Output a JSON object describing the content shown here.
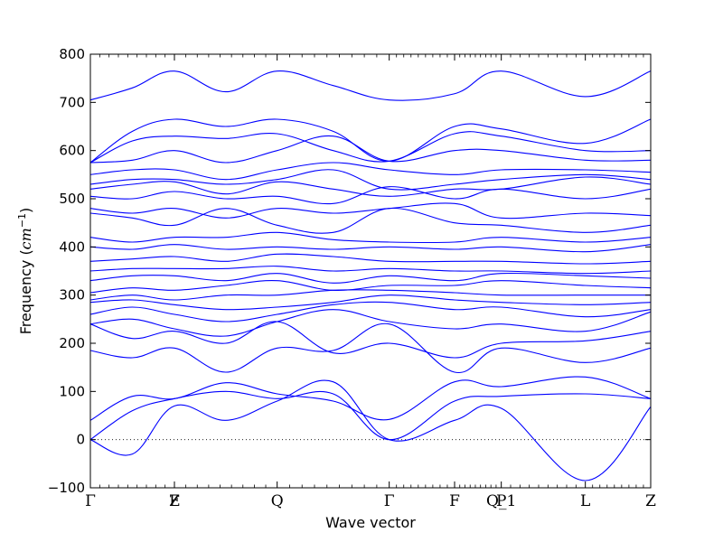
{
  "chart_data": {
    "type": "line",
    "xlabel": "Wave vector",
    "ylabel": "Frequency (cm⁻¹)",
    "ylabel_parts": {
      "main": "Frequency (",
      "unit_base": "cm",
      "unit_exp": "−1",
      "close": ")"
    },
    "ylim": [
      -100,
      800
    ],
    "yticks": [
      -100,
      0,
      100,
      200,
      300,
      400,
      500,
      600,
      700,
      800
    ],
    "zero_line": true,
    "grid": false,
    "line_color": "#0000ff",
    "xlim": [
      0,
      6.0
    ],
    "high_symmetry_points": [
      {
        "label": "Γ",
        "x": 0.0
      },
      {
        "label": "Z",
        "x": 0.9
      },
      {
        "label": "F",
        "x": 0.9
      },
      {
        "label": "Q",
        "x": 2.0
      },
      {
        "label": "Γ",
        "x": 3.2
      },
      {
        "label": "F",
        "x": 3.9
      },
      {
        "label": "Q_1",
        "x": 4.4
      },
      {
        "label": "P",
        "x": 4.4
      },
      {
        "label": "L",
        "x": 5.3
      },
      {
        "label": "Z",
        "x": 6.0
      }
    ],
    "minor_ticks_per_segment": 9,
    "series": [
      {
        "x": [
          0,
          0.45,
          0.9,
          1.45,
          2.0,
          2.6,
          3.2,
          3.9,
          4.4,
          5.3,
          6.0
        ],
        "y": [
          0,
          -30,
          70,
          40,
          80,
          120,
          0,
          40,
          65,
          -85,
          68
        ]
      },
      {
        "x": [
          0,
          0.45,
          0.9,
          1.45,
          2.0,
          2.6,
          3.2,
          3.9,
          4.4,
          5.3,
          6.0
        ],
        "y": [
          0,
          60,
          85,
          100,
          85,
          95,
          0,
          80,
          90,
          95,
          85
        ]
      },
      {
        "x": [
          0,
          0.45,
          0.9,
          1.45,
          2.0,
          2.6,
          3.2,
          3.9,
          4.4,
          5.3,
          6.0
        ],
        "y": [
          40,
          90,
          85,
          118,
          95,
          80,
          42,
          120,
          110,
          130,
          85
        ]
      },
      {
        "x": [
          0,
          0.45,
          0.9,
          1.45,
          2.0,
          2.6,
          3.2,
          3.9,
          4.4,
          5.3,
          6.0
        ],
        "y": [
          185,
          170,
          190,
          140,
          190,
          185,
          240,
          140,
          190,
          160,
          190
        ]
      },
      {
        "x": [
          0,
          0.45,
          0.9,
          1.45,
          2.0,
          2.6,
          3.2,
          3.9,
          4.4,
          5.3,
          6.0
        ],
        "y": [
          240,
          210,
          225,
          200,
          245,
          180,
          200,
          170,
          200,
          205,
          225
        ]
      },
      {
        "x": [
          0,
          0.45,
          0.9,
          1.45,
          2.0,
          2.6,
          3.2,
          3.9,
          4.4,
          5.3,
          6.0
        ],
        "y": [
          240,
          250,
          230,
          215,
          245,
          270,
          245,
          230,
          240,
          225,
          265
        ]
      },
      {
        "x": [
          0,
          0.45,
          0.9,
          1.45,
          2.0,
          2.6,
          3.2,
          3.9,
          4.4,
          5.3,
          6.0
        ],
        "y": [
          260,
          275,
          260,
          245,
          260,
          280,
          285,
          270,
          275,
          255,
          270
        ]
      },
      {
        "x": [
          0,
          0.45,
          0.9,
          1.45,
          2.0,
          2.6,
          3.2,
          3.9,
          4.4,
          5.3,
          6.0
        ],
        "y": [
          285,
          290,
          280,
          270,
          275,
          285,
          300,
          290,
          285,
          280,
          285
        ]
      },
      {
        "x": [
          0,
          0.45,
          0.9,
          1.45,
          2.0,
          2.6,
          3.2,
          3.9,
          4.4,
          5.3,
          6.0
        ],
        "y": [
          290,
          300,
          290,
          300,
          300,
          310,
          310,
          305,
          300,
          300,
          300
        ]
      },
      {
        "x": [
          0,
          0.45,
          0.9,
          1.45,
          2.0,
          2.6,
          3.2,
          3.9,
          4.4,
          5.3,
          6.0
        ],
        "y": [
          305,
          315,
          310,
          320,
          330,
          310,
          320,
          320,
          330,
          320,
          315
        ]
      },
      {
        "x": [
          0,
          0.45,
          0.9,
          1.45,
          2.0,
          2.6,
          3.2,
          3.9,
          4.4,
          5.3,
          6.0
        ],
        "y": [
          330,
          340,
          340,
          330,
          345,
          325,
          340,
          330,
          345,
          340,
          335
        ]
      },
      {
        "x": [
          0,
          0.45,
          0.9,
          1.45,
          2.0,
          2.6,
          3.2,
          3.9,
          4.4,
          5.3,
          6.0
        ],
        "y": [
          350,
          355,
          355,
          355,
          360,
          350,
          355,
          350,
          350,
          345,
          350
        ]
      },
      {
        "x": [
          0,
          0.45,
          0.9,
          1.45,
          2.0,
          2.6,
          3.2,
          3.9,
          4.4,
          5.3,
          6.0
        ],
        "y": [
          370,
          375,
          380,
          370,
          385,
          380,
          370,
          370,
          370,
          365,
          370
        ]
      },
      {
        "x": [
          0,
          0.45,
          0.9,
          1.45,
          2.0,
          2.6,
          3.2,
          3.9,
          4.4,
          5.3,
          6.0
        ],
        "y": [
          400,
          395,
          405,
          395,
          400,
          395,
          400,
          395,
          400,
          390,
          405
        ]
      },
      {
        "x": [
          0,
          0.45,
          0.9,
          1.45,
          2.0,
          2.6,
          3.2,
          3.9,
          4.4,
          5.3,
          6.0
        ],
        "y": [
          420,
          410,
          420,
          420,
          430,
          415,
          410,
          410,
          420,
          410,
          420
        ]
      },
      {
        "x": [
          0,
          0.45,
          0.9,
          1.45,
          2.0,
          2.6,
          3.2,
          3.9,
          4.4,
          5.3,
          6.0
        ],
        "y": [
          470,
          460,
          445,
          480,
          445,
          430,
          480,
          450,
          445,
          430,
          445
        ]
      },
      {
        "x": [
          0,
          0.45,
          0.9,
          1.45,
          2.0,
          2.6,
          3.2,
          3.9,
          4.4,
          5.3,
          6.0
        ],
        "y": [
          480,
          470,
          480,
          460,
          480,
          470,
          480,
          490,
          460,
          470,
          465
        ]
      },
      {
        "x": [
          0,
          0.45,
          0.9,
          1.45,
          2.0,
          2.6,
          3.2,
          3.9,
          4.4,
          5.3,
          6.0
        ],
        "y": [
          505,
          500,
          515,
          500,
          505,
          490,
          525,
          500,
          520,
          500,
          520
        ]
      },
      {
        "x": [
          0,
          0.45,
          0.9,
          1.45,
          2.0,
          2.6,
          3.2,
          3.9,
          4.4,
          5.3,
          6.0
        ],
        "y": [
          520,
          530,
          535,
          510,
          535,
          520,
          505,
          520,
          520,
          545,
          530
        ]
      },
      {
        "x": [
          0,
          0.45,
          0.9,
          1.45,
          2.0,
          2.6,
          3.2,
          3.9,
          4.4,
          5.3,
          6.0
        ],
        "y": [
          530,
          540,
          540,
          530,
          540,
          560,
          520,
          530,
          540,
          550,
          540
        ]
      },
      {
        "x": [
          0,
          0.45,
          0.9,
          1.45,
          2.0,
          2.6,
          3.2,
          3.9,
          4.4,
          5.3,
          6.0
        ],
        "y": [
          550,
          560,
          560,
          540,
          560,
          575,
          560,
          550,
          560,
          560,
          555
        ]
      },
      {
        "x": [
          0,
          0.45,
          0.9,
          1.45,
          2.0,
          2.6,
          3.2,
          3.9,
          4.4,
          5.3,
          6.0
        ],
        "y": [
          575,
          580,
          600,
          575,
          600,
          630,
          578,
          600,
          600,
          580,
          580
        ]
      },
      {
        "x": [
          0,
          0.45,
          0.9,
          1.45,
          2.0,
          2.6,
          3.2,
          3.9,
          4.4,
          5.3,
          6.0
        ],
        "y": [
          575,
          620,
          630,
          625,
          635,
          600,
          578,
          635,
          630,
          600,
          600
        ]
      },
      {
        "x": [
          0,
          0.45,
          0.9,
          1.45,
          2.0,
          2.6,
          3.2,
          3.9,
          4.4,
          5.3,
          6.0
        ],
        "y": [
          575,
          640,
          665,
          650,
          665,
          640,
          578,
          650,
          645,
          615,
          665
        ]
      },
      {
        "x": [
          0,
          0.45,
          0.9,
          1.45,
          2.0,
          2.6,
          3.2,
          3.9,
          4.4,
          5.3,
          6.0
        ],
        "y": [
          705,
          730,
          765,
          722,
          765,
          735,
          705,
          718,
          765,
          712,
          765
        ]
      }
    ]
  }
}
